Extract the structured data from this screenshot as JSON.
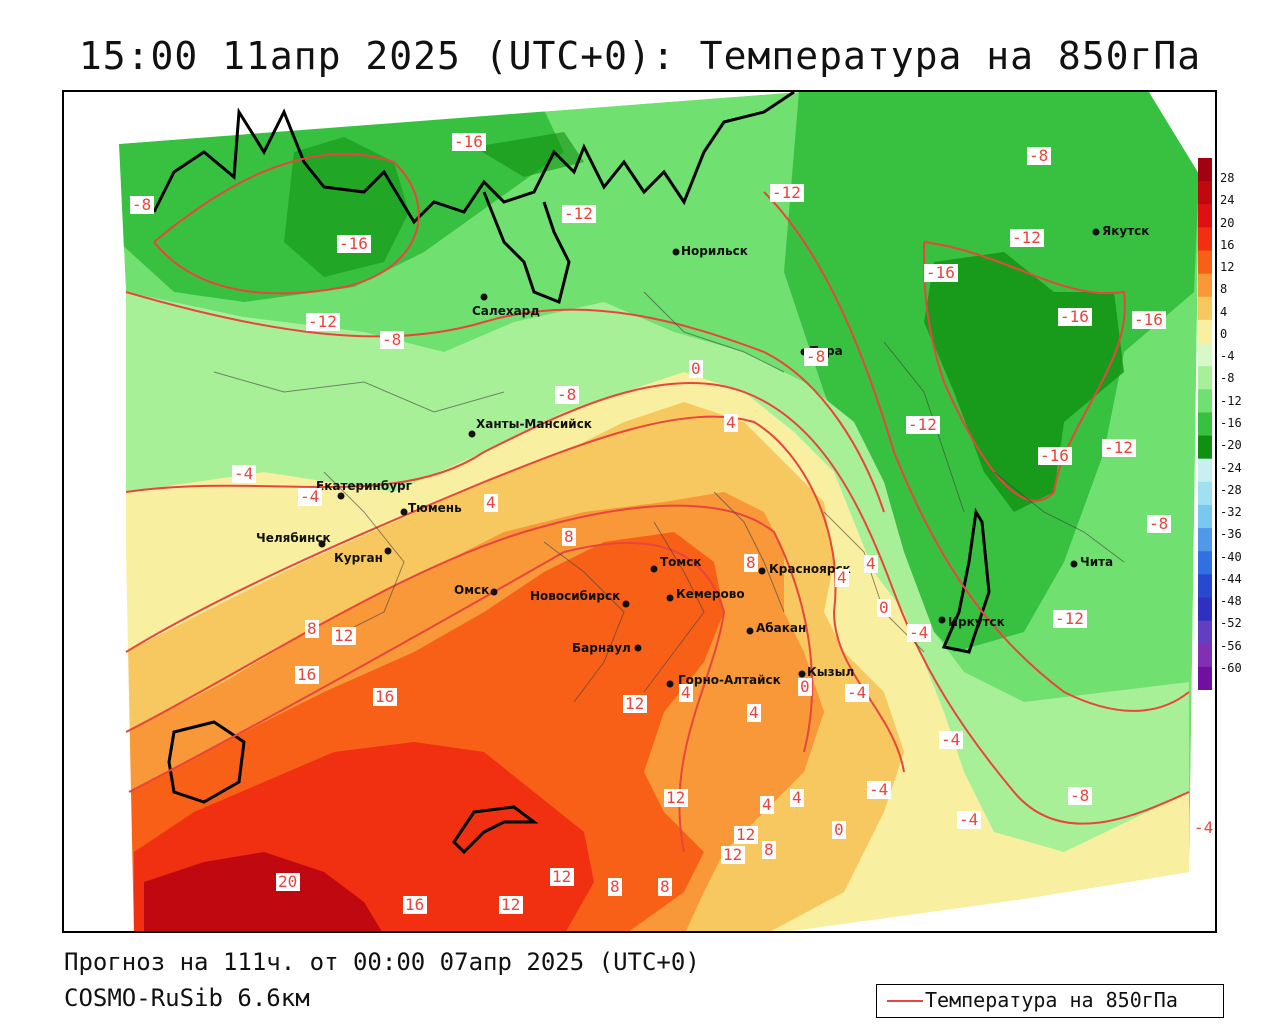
{
  "title": "15:00 11апр 2025 (UTC+0): Температура на 850гПа",
  "footer": {
    "forecast": "Прогноз на 111ч. от 00:00 07апр 2025 (UTC+0)",
    "model": "COSMO-RuSib 6.6км"
  },
  "legend": {
    "label": "Температура на 850гПа",
    "line_color": "#e8463c"
  },
  "colorbar": {
    "levels": [
      "28",
      "24",
      "20",
      "16",
      "12",
      "8",
      "4",
      "0",
      "-4",
      "-8",
      "-12",
      "-16",
      "-20",
      "-24",
      "-28",
      "-32",
      "-36",
      "-40",
      "-44",
      "-48",
      "-52",
      "-56",
      "-60"
    ],
    "colors": [
      "#a00010",
      "#c00810",
      "#e01010",
      "#f03010",
      "#f86018",
      "#f89838",
      "#f8c860",
      "#f8f0a0",
      "#d8f8c8",
      "#a8f098",
      "#70e070",
      "#38c040",
      "#109010",
      "#c8f0f0",
      "#a0e0f0",
      "#78c8f0",
      "#5098e8",
      "#3070e0",
      "#2848d0",
      "#3030c0",
      "#6040c0",
      "#8030b0",
      "#7010a0"
    ]
  },
  "cities": [
    {
      "name": "Норильск"
    },
    {
      "name": "Салехард"
    },
    {
      "name": "Тура"
    },
    {
      "name": "Якутск"
    },
    {
      "name": "Ханты-Мансийск"
    },
    {
      "name": "Екатеринбург"
    },
    {
      "name": "Тюмень"
    },
    {
      "name": "Челябинск"
    },
    {
      "name": "Курган"
    },
    {
      "name": "Омск"
    },
    {
      "name": "Новосибирск"
    },
    {
      "name": "Томск"
    },
    {
      "name": "Кемерово"
    },
    {
      "name": "Красноярск"
    },
    {
      "name": "Абакан"
    },
    {
      "name": "Барнаул"
    },
    {
      "name": "Горно-Алтайск"
    },
    {
      "name": "Кызыл"
    },
    {
      "name": "Иркутск"
    },
    {
      "name": "Чита"
    }
  ],
  "contour_labels": [
    {
      "text": "-16"
    },
    {
      "text": "-8"
    },
    {
      "text": "-16"
    },
    {
      "text": "-12"
    },
    {
      "text": "-12"
    },
    {
      "text": "-8"
    },
    {
      "text": "-8"
    },
    {
      "text": "-12"
    },
    {
      "text": "-12"
    },
    {
      "text": "-16"
    },
    {
      "text": "-16"
    },
    {
      "text": "-16"
    },
    {
      "text": "-8"
    },
    {
      "text": "0"
    },
    {
      "text": "-8"
    },
    {
      "text": "4"
    },
    {
      "text": "-12"
    },
    {
      "text": "-16"
    },
    {
      "text": "-12"
    },
    {
      "text": "-4"
    },
    {
      "text": "-4"
    },
    {
      "text": "4"
    },
    {
      "text": "8"
    },
    {
      "text": "8"
    },
    {
      "text": "4"
    },
    {
      "text": "-8"
    },
    {
      "text": "4"
    },
    {
      "text": "0"
    },
    {
      "text": "-4"
    },
    {
      "text": "-12"
    },
    {
      "text": "8"
    },
    {
      "text": "12"
    },
    {
      "text": "16"
    },
    {
      "text": "16"
    },
    {
      "text": "12"
    },
    {
      "text": "0"
    },
    {
      "text": "-4"
    },
    {
      "text": "4"
    },
    {
      "text": "4"
    },
    {
      "text": "-4"
    },
    {
      "text": "12"
    },
    {
      "text": "4"
    },
    {
      "text": "4"
    },
    {
      "text": "-4"
    },
    {
      "text": "-8"
    },
    {
      "text": "-4"
    },
    {
      "text": "12"
    },
    {
      "text": "0"
    },
    {
      "text": "8"
    },
    {
      "text": "12"
    },
    {
      "text": "-4"
    },
    {
      "text": "20"
    },
    {
      "text": "12"
    },
    {
      "text": "8"
    },
    {
      "text": "8"
    },
    {
      "text": "16"
    },
    {
      "text": "12"
    }
  ]
}
